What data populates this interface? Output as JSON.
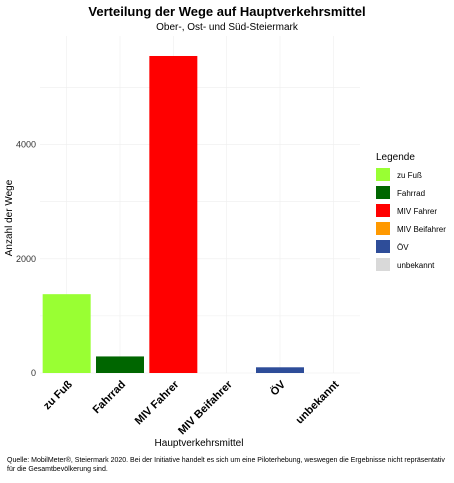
{
  "chart_data": {
    "type": "bar",
    "title": "Verteilung der Wege auf Hauptverkehrsmittel",
    "subtitle": "Ober-, Ost- und Süd-Steiermark",
    "xlabel": "Hauptverkehrsmittel",
    "ylabel": "Anzahl der Wege",
    "categories": [
      "zu Fuß",
      "Fahrrad",
      "MIV Fahrer",
      "MIV Beifahrer",
      "ÖV",
      "unbekannt"
    ],
    "values": [
      1380,
      290,
      5550,
      0,
      100,
      0
    ],
    "colors": [
      "#99ff33",
      "#006600",
      "#ff0000",
      "#ff9900",
      "#2e4d99",
      "#d9d9d9"
    ],
    "yticks": [
      0,
      2000,
      4000
    ],
    "ylim": [
      0,
      5900
    ],
    "grid": true,
    "legend": {
      "title": "Legende",
      "position": "right",
      "entries": [
        "zu Fuß",
        "Fahrrad",
        "MIV Fahrer",
        "MIV Beifahrer",
        "ÖV",
        "unbekannt"
      ]
    }
  },
  "caption": "Quelle: MobilMeter®, Steiermark 2020. Bei der Initiative handelt es sich um eine Piloterhebung, weswegen die Ergebnisse nicht repräsentativ für die Gesamtbevölkerung sind."
}
